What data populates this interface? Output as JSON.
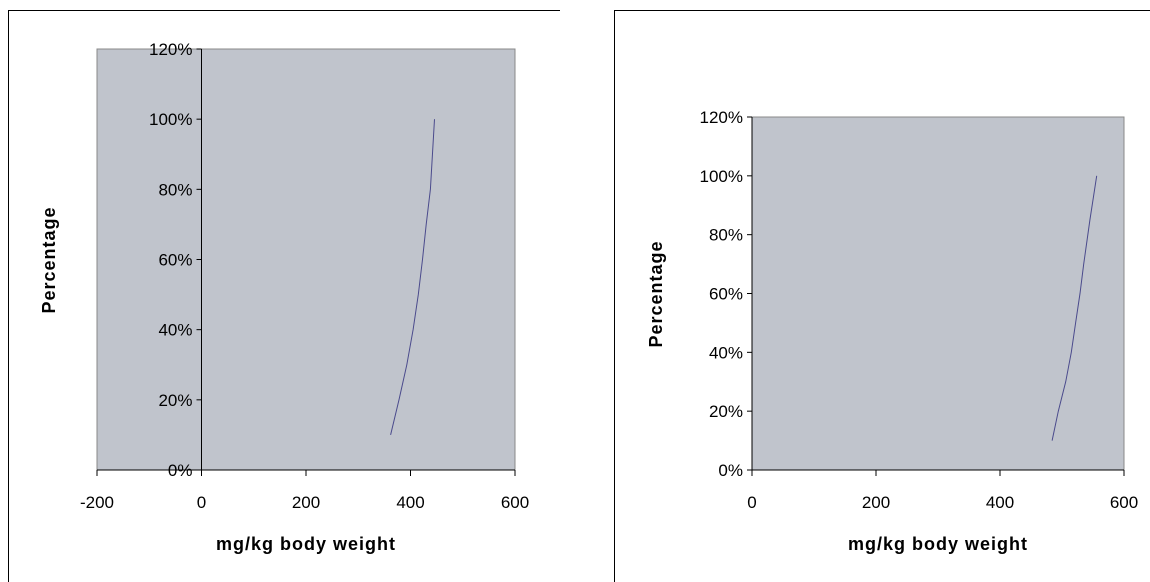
{
  "chart_data": [
    {
      "type": "line",
      "title": "",
      "xlabel": "mg/kg body weight",
      "ylabel": "Percentage",
      "xlim": [
        -200,
        600
      ],
      "ylim": [
        0,
        1.2
      ],
      "x_ticks": [
        -200,
        0,
        200,
        400,
        600
      ],
      "x_tick_labels": [
        "-200",
        "0",
        "200",
        "400",
        "600"
      ],
      "y_ticks": [
        0,
        0.2,
        0.4,
        0.6,
        0.8,
        1.0,
        1.2
      ],
      "y_tick_labels": [
        "0%",
        "20%",
        "40%",
        "60%",
        "80%",
        "100%",
        "120%"
      ],
      "grid": false,
      "legend": "none",
      "colors": {
        "plot_area": "#c0c4cc",
        "series": "#4a4a8c"
      },
      "series": [
        {
          "x": [
            362,
            378,
            393,
            405,
            415,
            423,
            430,
            438,
            446
          ],
          "y": [
            0.1,
            0.2,
            0.3,
            0.4,
            0.5,
            0.6,
            0.7,
            0.8,
            1.0
          ]
        }
      ]
    },
    {
      "type": "line",
      "title": "",
      "xlabel": "mg/kg body weight",
      "ylabel": "Percentage",
      "xlim": [
        0,
        600
      ],
      "ylim": [
        0,
        1.2
      ],
      "x_ticks": [
        0,
        200,
        400,
        600
      ],
      "x_tick_labels": [
        "0",
        "200",
        "400",
        "600"
      ],
      "y_ticks": [
        0,
        0.2,
        0.4,
        0.6,
        0.8,
        1.0,
        1.2
      ],
      "y_tick_labels": [
        "0%",
        "20%",
        "40%",
        "60%",
        "80%",
        "100%",
        "120%"
      ],
      "grid": false,
      "legend": "none",
      "colors": {
        "plot_area": "#c0c4cc",
        "series": "#4a4a8c"
      },
      "series": [
        {
          "x": [
            484,
            494,
            506,
            515,
            522,
            529,
            535,
            545,
            556
          ],
          "y": [
            0.1,
            0.2,
            0.3,
            0.4,
            0.5,
            0.6,
            0.7,
            0.85,
            1.0
          ]
        }
      ]
    }
  ]
}
